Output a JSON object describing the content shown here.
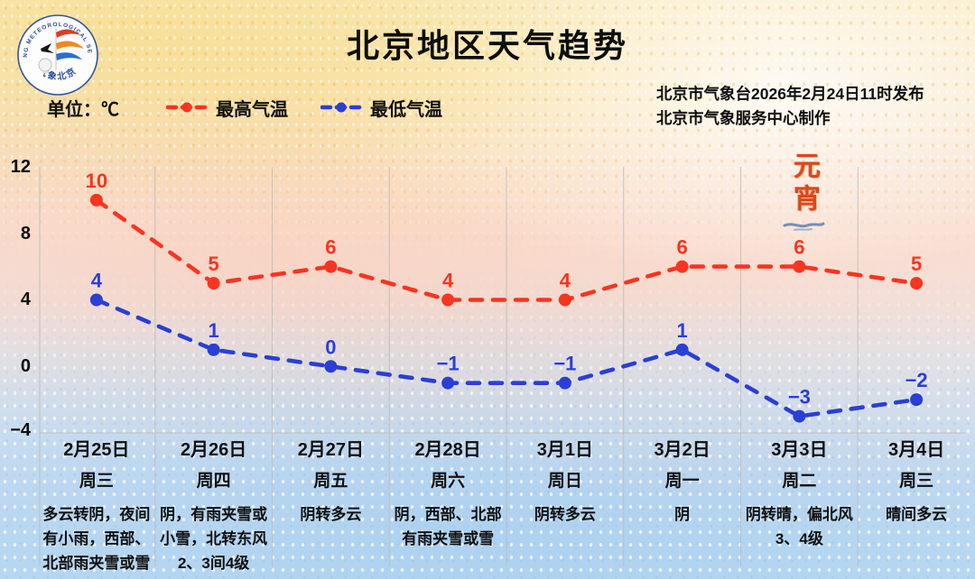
{
  "page": {
    "title": "北京地区天气趋势"
  },
  "logo": {
    "ring_text": "BEIJING METEOROLOGICAL SERVICE",
    "bottom_text": "气象北京"
  },
  "header": {
    "publisher_line1": "北京市气象台2026年2月24日11时发布",
    "publisher_line2": "北京市气象服务中心制作",
    "unit_label": "单位：℃"
  },
  "decoration": {
    "text": "元宵"
  },
  "chart_data": {
    "type": "line",
    "title": "北京地区天气趋势",
    "categories": [
      "2月25日",
      "2月26日",
      "2月27日",
      "2月28日",
      "3月1日",
      "3月2日",
      "3月3日",
      "3月4日"
    ],
    "series": [
      {
        "name": "最高气温",
        "color": "#f93420",
        "values": [
          10,
          5,
          6,
          4,
          4,
          6,
          6,
          5
        ]
      },
      {
        "name": "最低气温",
        "color": "#2a3fd4",
        "values": [
          4,
          1,
          0,
          -1,
          -1,
          1,
          -3,
          -2
        ]
      }
    ],
    "ylabel": "℃",
    "ylim": [
      -4,
      12
    ],
    "yticks": [
      12,
      8,
      4,
      0,
      -4
    ],
    "grid": {
      "vertical_separators": true,
      "bottom_line": true
    },
    "legend_position": "top-left",
    "line_style": "dashed-with-dots"
  },
  "days": [
    {
      "date": "2月25日",
      "weekday": "周三",
      "weather": "多云转阴，夜间有小雨，西部、北部雨夹雪或雪"
    },
    {
      "date": "2月26日",
      "weekday": "周四",
      "weather": "阴，有雨夹雪或小雪，北转东风2、3间4级"
    },
    {
      "date": "2月27日",
      "weekday": "周五",
      "weather": "阴转多云"
    },
    {
      "date": "2月28日",
      "weekday": "周六",
      "weather": "阴，西部、北部有雨夹雪或雪"
    },
    {
      "date": "3月1日",
      "weekday": "周日",
      "weather": "阴转多云"
    },
    {
      "date": "3月2日",
      "weekday": "周一",
      "weather": "阴"
    },
    {
      "date": "3月3日",
      "weekday": "周二",
      "weather": "阴转晴，偏北风3、4级"
    },
    {
      "date": "3月4日",
      "weekday": "周三",
      "weather": "晴间多云"
    }
  ]
}
